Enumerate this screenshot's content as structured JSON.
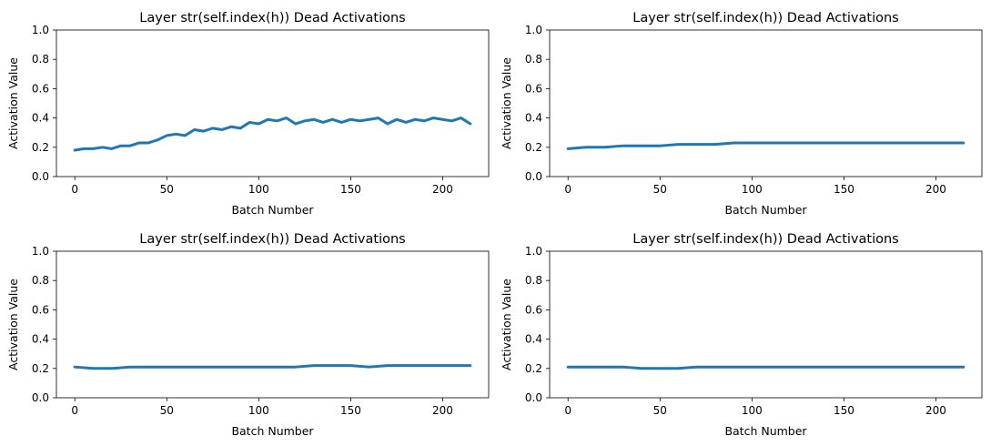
{
  "chart_data": [
    {
      "type": "line",
      "title": "Layer str(self.index(h)) Dead Activations",
      "xlabel": "Batch Number",
      "ylabel": "Activation Value",
      "xlim": [
        -10,
        225
      ],
      "ylim": [
        0,
        1
      ],
      "xticks": [
        0,
        50,
        100,
        150,
        200
      ],
      "yticks": [
        0.0,
        0.2,
        0.4,
        0.6,
        0.8,
        1.0
      ],
      "xtick_labels": [
        "0",
        "50",
        "100",
        "150",
        "200"
      ],
      "ytick_labels": [
        "0.0",
        "0.2",
        "0.4",
        "0.6",
        "0.8",
        "1.0"
      ],
      "grid": false,
      "series": [
        {
          "color": "#1f77b4",
          "x": [
            0,
            5,
            10,
            15,
            20,
            25,
            30,
            35,
            40,
            45,
            50,
            55,
            60,
            65,
            70,
            75,
            80,
            85,
            90,
            95,
            100,
            105,
            110,
            115,
            120,
            125,
            130,
            135,
            140,
            145,
            150,
            155,
            160,
            165,
            170,
            175,
            180,
            185,
            190,
            195,
            200,
            205,
            210,
            215
          ],
          "y": [
            0.18,
            0.19,
            0.19,
            0.2,
            0.19,
            0.21,
            0.21,
            0.23,
            0.23,
            0.25,
            0.28,
            0.29,
            0.28,
            0.32,
            0.31,
            0.33,
            0.32,
            0.34,
            0.33,
            0.37,
            0.36,
            0.39,
            0.38,
            0.4,
            0.36,
            0.38,
            0.39,
            0.37,
            0.39,
            0.37,
            0.39,
            0.38,
            0.39,
            0.4,
            0.36,
            0.39,
            0.37,
            0.39,
            0.38,
            0.4,
            0.39,
            0.38,
            0.4,
            0.36
          ]
        }
      ]
    },
    {
      "type": "line",
      "title": "Layer str(self.index(h)) Dead Activations",
      "xlabel": "Batch Number",
      "ylabel": "Activation Value",
      "xlim": [
        -10,
        225
      ],
      "ylim": [
        0,
        1
      ],
      "xticks": [
        0,
        50,
        100,
        150,
        200
      ],
      "yticks": [
        0.0,
        0.2,
        0.4,
        0.6,
        0.8,
        1.0
      ],
      "xtick_labels": [
        "0",
        "50",
        "100",
        "150",
        "200"
      ],
      "ytick_labels": [
        "0.0",
        "0.2",
        "0.4",
        "0.6",
        "0.8",
        "1.0"
      ],
      "grid": false,
      "series": [
        {
          "color": "#1f77b4",
          "x": [
            0,
            10,
            20,
            30,
            40,
            50,
            60,
            70,
            80,
            90,
            100,
            110,
            120,
            130,
            140,
            150,
            160,
            170,
            180,
            190,
            200,
            210,
            215
          ],
          "y": [
            0.19,
            0.2,
            0.2,
            0.21,
            0.21,
            0.21,
            0.22,
            0.22,
            0.22,
            0.23,
            0.23,
            0.23,
            0.23,
            0.23,
            0.23,
            0.23,
            0.23,
            0.23,
            0.23,
            0.23,
            0.23,
            0.23,
            0.23
          ]
        }
      ]
    },
    {
      "type": "line",
      "title": "Layer str(self.index(h)) Dead Activations",
      "xlabel": "Batch Number",
      "ylabel": "Activation Value",
      "xlim": [
        -10,
        225
      ],
      "ylim": [
        0,
        1
      ],
      "xticks": [
        0,
        50,
        100,
        150,
        200
      ],
      "yticks": [
        0.0,
        0.2,
        0.4,
        0.6,
        0.8,
        1.0
      ],
      "xtick_labels": [
        "0",
        "50",
        "100",
        "150",
        "200"
      ],
      "ytick_labels": [
        "0.0",
        "0.2",
        "0.4",
        "0.6",
        "0.8",
        "1.0"
      ],
      "grid": false,
      "series": [
        {
          "color": "#1f77b4",
          "x": [
            0,
            10,
            20,
            30,
            40,
            50,
            60,
            70,
            80,
            90,
            100,
            110,
            120,
            130,
            140,
            150,
            160,
            170,
            180,
            190,
            200,
            210,
            215
          ],
          "y": [
            0.21,
            0.2,
            0.2,
            0.21,
            0.21,
            0.21,
            0.21,
            0.21,
            0.21,
            0.21,
            0.21,
            0.21,
            0.21,
            0.22,
            0.22,
            0.22,
            0.21,
            0.22,
            0.22,
            0.22,
            0.22,
            0.22,
            0.22
          ]
        }
      ]
    },
    {
      "type": "line",
      "title": "Layer str(self.index(h)) Dead Activations",
      "xlabel": "Batch Number",
      "ylabel": "Activation Value",
      "xlim": [
        -10,
        225
      ],
      "ylim": [
        0,
        1
      ],
      "xticks": [
        0,
        50,
        100,
        150,
        200
      ],
      "yticks": [
        0.0,
        0.2,
        0.4,
        0.6,
        0.8,
        1.0
      ],
      "xtick_labels": [
        "0",
        "50",
        "100",
        "150",
        "200"
      ],
      "ytick_labels": [
        "0.0",
        "0.2",
        "0.4",
        "0.6",
        "0.8",
        "1.0"
      ],
      "grid": false,
      "series": [
        {
          "color": "#1f77b4",
          "x": [
            0,
            10,
            20,
            30,
            40,
            50,
            60,
            70,
            80,
            90,
            100,
            110,
            120,
            130,
            140,
            150,
            160,
            170,
            180,
            190,
            200,
            210,
            215
          ],
          "y": [
            0.21,
            0.21,
            0.21,
            0.21,
            0.2,
            0.2,
            0.2,
            0.21,
            0.21,
            0.21,
            0.21,
            0.21,
            0.21,
            0.21,
            0.21,
            0.21,
            0.21,
            0.21,
            0.21,
            0.21,
            0.21,
            0.21,
            0.21
          ]
        }
      ]
    }
  ]
}
